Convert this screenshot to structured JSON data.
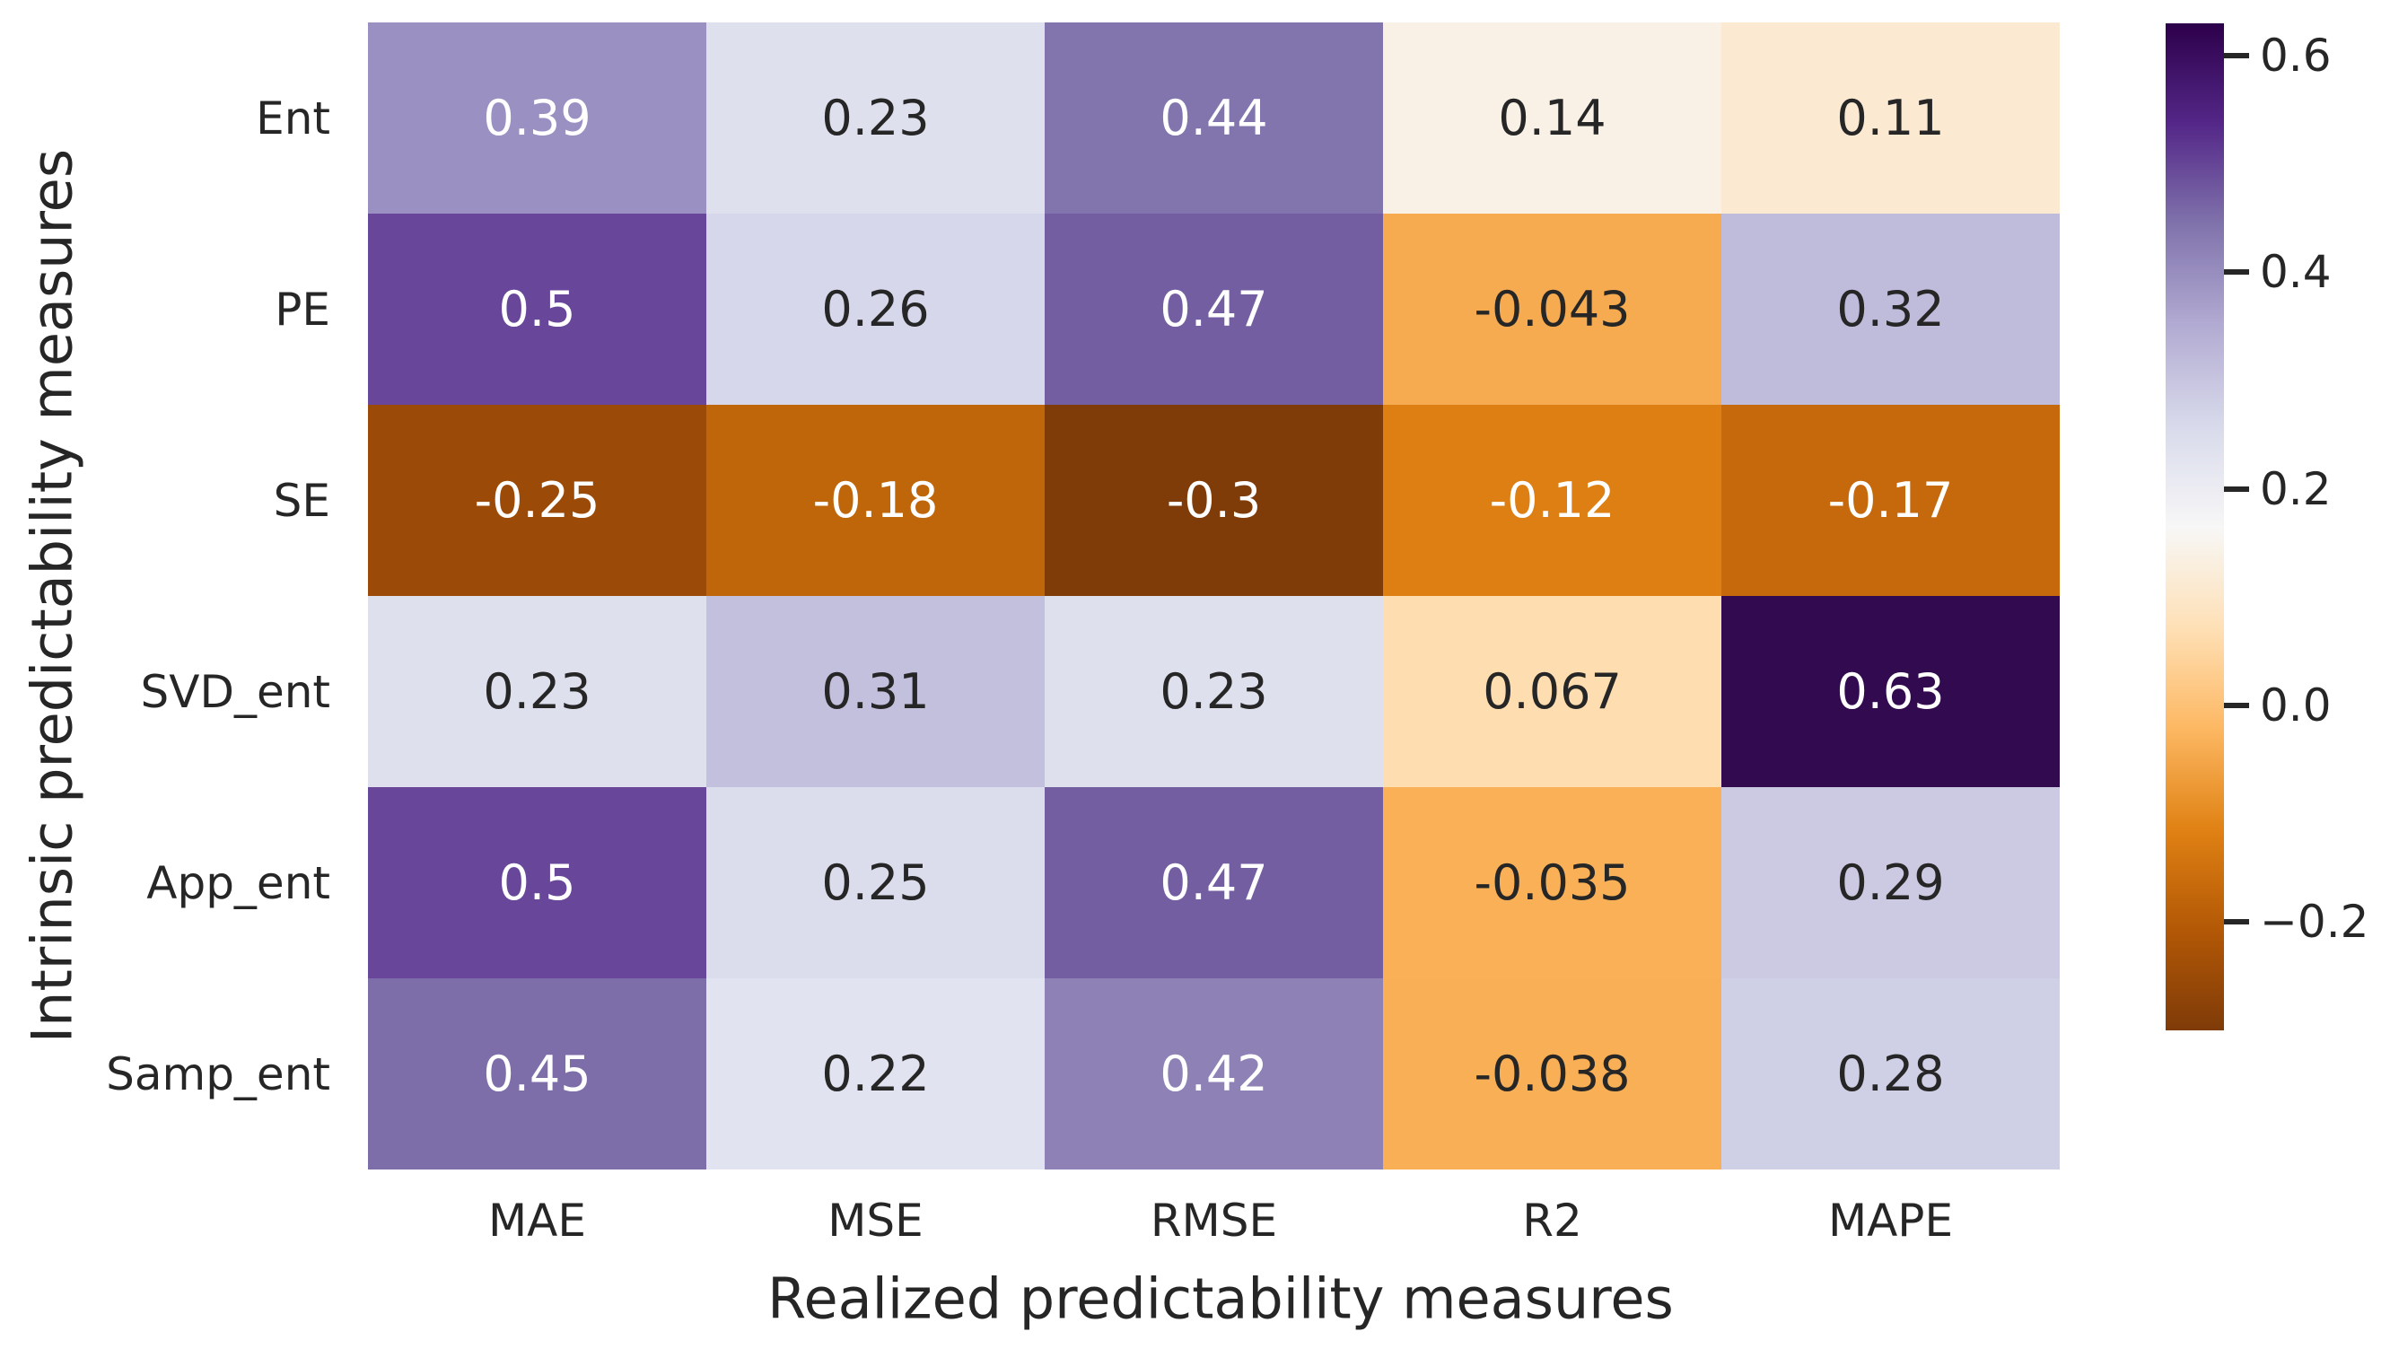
{
  "figure": {
    "background": "#ffffff",
    "text_color": "#262626"
  },
  "chart_data": {
    "type": "heatmap",
    "colormap": "PuOr",
    "xlabel": "Realized predictability measures",
    "ylabel": "Intrinsic predictability measures",
    "columns": [
      "MAE",
      "MSE",
      "RMSE",
      "R2",
      "MAPE"
    ],
    "rows": [
      "Ent",
      "PE",
      "SE",
      "SVD_ent",
      "App_ent",
      "Samp_ent"
    ],
    "values": [
      [
        0.39,
        0.23,
        0.44,
        0.14,
        0.11
      ],
      [
        0.5,
        0.26,
        0.47,
        -0.043,
        0.32
      ],
      [
        -0.25,
        -0.18,
        -0.3,
        -0.12,
        -0.17
      ],
      [
        0.23,
        0.31,
        0.23,
        0.067,
        0.63
      ],
      [
        0.5,
        0.25,
        0.47,
        -0.035,
        0.29
      ],
      [
        0.45,
        0.22,
        0.42,
        -0.038,
        0.28
      ]
    ],
    "value_labels": [
      [
        "0.39",
        "0.23",
        "0.44",
        "0.14",
        "0.11"
      ],
      [
        "0.5",
        "0.26",
        "0.47",
        "-0.043",
        "0.32"
      ],
      [
        "-0.25",
        "-0.18",
        "-0.3",
        "-0.12",
        "-0.17"
      ],
      [
        "0.23",
        "0.31",
        "0.23",
        "0.067",
        "0.63"
      ],
      [
        "0.5",
        "0.25",
        "0.47",
        "-0.035",
        "0.29"
      ],
      [
        "0.45",
        "0.22",
        "0.42",
        "-0.038",
        "0.28"
      ]
    ],
    "cell_colors": [
      [
        "#9a90c2",
        "#dfe0ee",
        "#8275ae",
        "#f9f1e6",
        "#fbe9d1"
      ],
      [
        "#68479a",
        "#d6d7ea",
        "#745ea2",
        "#f6ab50",
        "#bfbbda"
      ],
      [
        "#9b4b07",
        "#bf650a",
        "#7f3b08",
        "#dd7f13",
        "#c5690c"
      ],
      [
        "#dfe0ee",
        "#c3c0dd",
        "#dfe0ee",
        "#fedeb1",
        "#310a50"
      ],
      [
        "#68479a",
        "#dbdcec",
        "#745ea2",
        "#f9b057",
        "#cbcae2"
      ],
      [
        "#7d6eaa",
        "#e2e3f0",
        "#8d81b6",
        "#f8af55",
        "#cfcfe5"
      ]
    ],
    "cell_text_colors": [
      [
        "#ffffff",
        "#262626",
        "#ffffff",
        "#262626",
        "#262626"
      ],
      [
        "#ffffff",
        "#262626",
        "#ffffff",
        "#262626",
        "#262626"
      ],
      [
        "#ffffff",
        "#ffffff",
        "#ffffff",
        "#ffffff",
        "#ffffff"
      ],
      [
        "#262626",
        "#262626",
        "#262626",
        "#262626",
        "#ffffff"
      ],
      [
        "#ffffff",
        "#262626",
        "#ffffff",
        "#262626",
        "#262626"
      ],
      [
        "#ffffff",
        "#262626",
        "#ffffff",
        "#262626",
        "#262626"
      ]
    ],
    "colorbar": {
      "vmin": -0.3,
      "vmax": 0.63,
      "ticks": [
        {
          "value": 0.6,
          "label": "0.6"
        },
        {
          "value": 0.4,
          "label": "0.4"
        },
        {
          "value": 0.2,
          "label": "0.2"
        },
        {
          "value": 0.0,
          "label": "0.0"
        },
        {
          "value": -0.2,
          "label": "−0.2"
        }
      ],
      "gradient_anchors_bottom_to_top": [
        "#7f3b08",
        "#b35806",
        "#e08214",
        "#fdb863",
        "#fee0b6",
        "#f7f7f7",
        "#d8daeb",
        "#b2abd2",
        "#8073ac",
        "#542788",
        "#2d004b"
      ]
    },
    "legend_position": "right",
    "grid": false
  }
}
